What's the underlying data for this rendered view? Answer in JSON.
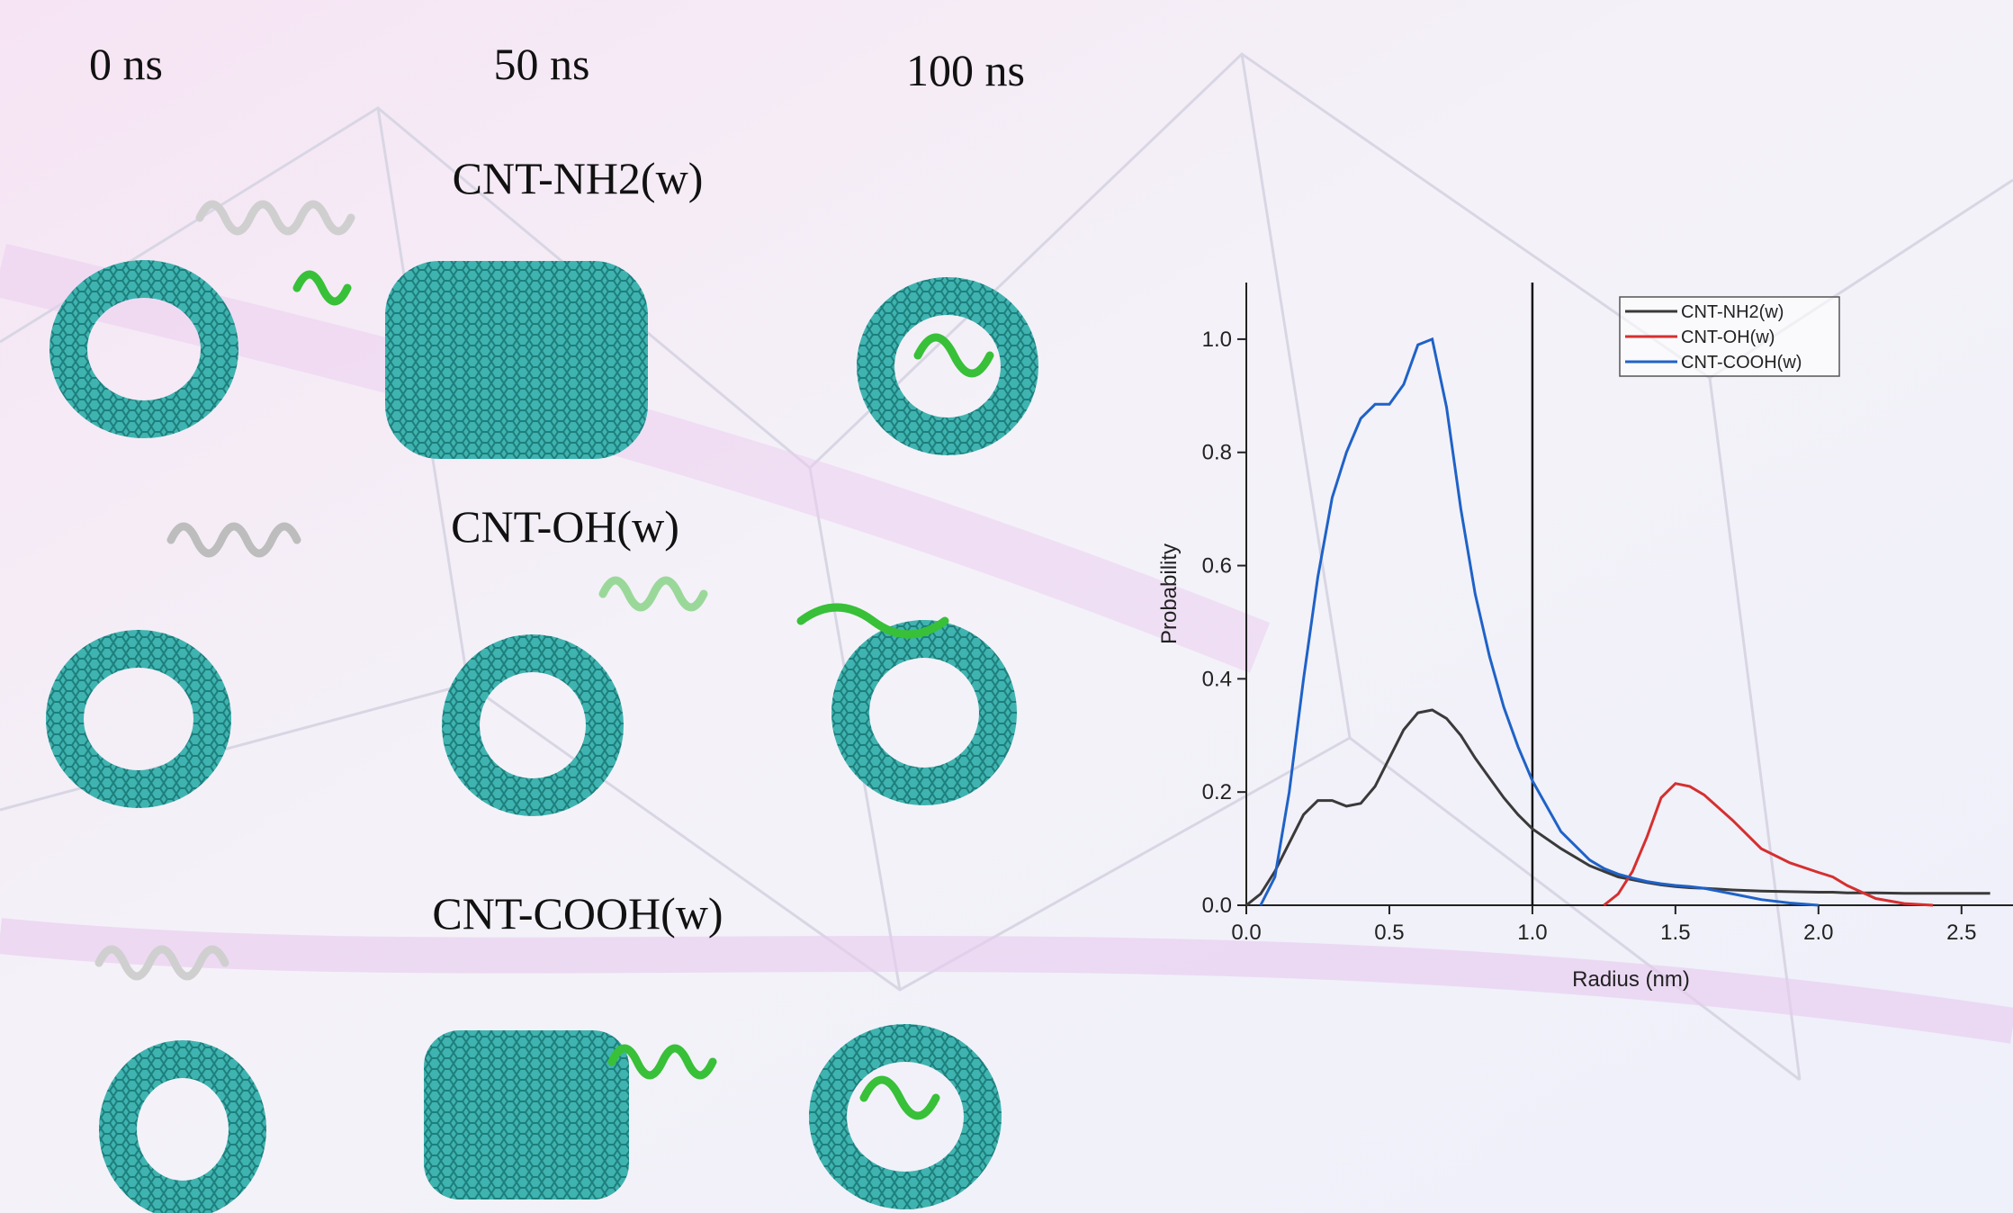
{
  "panel_labels": {
    "times": [
      "0 ns",
      "50 ns",
      "100 ns"
    ],
    "systems": [
      "CNT-NH2(w)",
      "CNT-OH(w)",
      "CNT-COOH(w)"
    ]
  },
  "chart_data": {
    "type": "line",
    "xlabel": "Radius (nm)",
    "ylabel": "Probability",
    "x": [
      0,
      0.05,
      0.1,
      0.15,
      0.2,
      0.25,
      0.3,
      0.35,
      0.4,
      0.45,
      0.5,
      0.55,
      0.6,
      0.65,
      0.7,
      0.75,
      0.8,
      0.85,
      0.9,
      0.95,
      1.0,
      1.1,
      1.2,
      1.25,
      1.3,
      1.35,
      1.4,
      1.45,
      1.5,
      1.55,
      1.6,
      1.7,
      1.8,
      1.9,
      2.0,
      2.05,
      2.1,
      2.2,
      2.3,
      2.4,
      2.5,
      2.6
    ],
    "series": [
      {
        "name": "CNT-NH2(w)",
        "color": "#3a3a3a",
        "values": [
          0,
          0.02,
          0.06,
          0.11,
          0.16,
          0.185,
          0.185,
          0.175,
          0.18,
          0.21,
          0.26,
          0.31,
          0.34,
          0.345,
          0.33,
          0.3,
          0.26,
          0.225,
          0.19,
          0.16,
          0.135,
          0.1,
          0.07,
          0.06,
          0.05,
          0.045,
          0.04,
          0.036,
          0.033,
          0.031,
          0.03,
          0.027,
          0.025,
          0.024,
          0.023,
          0.023,
          0.022,
          0.022,
          0.021,
          0.021,
          0.021,
          0.021
        ]
      },
      {
        "name": "CNT-OH(w)",
        "color": "#d62f2f",
        "values": [
          null,
          null,
          null,
          null,
          null,
          null,
          null,
          null,
          null,
          null,
          null,
          null,
          null,
          null,
          null,
          null,
          null,
          null,
          null,
          null,
          null,
          null,
          null,
          0,
          0.02,
          0.06,
          0.12,
          0.19,
          0.215,
          0.21,
          0.195,
          0.15,
          0.1,
          0.075,
          0.058,
          0.05,
          0.035,
          0.012,
          0.003,
          0,
          null,
          null
        ]
      },
      {
        "name": "CNT-COOH(w)",
        "color": "#1f62c8",
        "values": [
          null,
          0,
          0.05,
          0.2,
          0.4,
          0.58,
          0.72,
          0.8,
          0.86,
          0.885,
          0.885,
          0.92,
          0.99,
          1.0,
          0.88,
          0.7,
          0.55,
          0.44,
          0.35,
          0.28,
          0.22,
          0.13,
          0.08,
          0.065,
          0.055,
          0.048,
          0.042,
          0.038,
          0.035,
          0.033,
          0.03,
          0.02,
          0.01,
          0.004,
          0,
          null,
          null,
          null,
          null,
          null,
          null,
          null
        ]
      }
    ],
    "xlim": [
      0,
      2.68
    ],
    "ylim": [
      0,
      1.1
    ],
    "xticks": [
      {
        "value": 0,
        "label": "0.0"
      },
      {
        "value": 0.5,
        "label": "0.5"
      },
      {
        "value": 1,
        "label": "1.0"
      },
      {
        "value": 1.5,
        "label": "1.5"
      },
      {
        "value": 2,
        "label": "2.0"
      },
      {
        "value": 2.5,
        "label": "2.5"
      }
    ],
    "yticks": [
      {
        "value": 0,
        "label": "0.0"
      },
      {
        "value": 0.2,
        "label": "0.2"
      },
      {
        "value": 0.4,
        "label": "0.4"
      },
      {
        "value": 0.6,
        "label": "0.6"
      },
      {
        "value": 0.8,
        "label": "0.8"
      },
      {
        "value": 1,
        "label": "1.0"
      }
    ],
    "vline": 1,
    "legend": "upper-right",
    "grid": false
  }
}
